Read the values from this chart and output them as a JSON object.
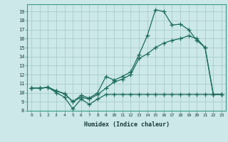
{
  "bg_color": "#cce8e8",
  "grid_color": "#aacccc",
  "line_color": "#1a6b5a",
  "line_width": 0.9,
  "marker": "+",
  "marker_size": 4,
  "marker_edge_width": 0.9,
  "xlabel": "Humidex (Indice chaleur)",
  "xlim": [
    -0.5,
    23.5
  ],
  "ylim": [
    8,
    19.8
  ],
  "xticks": [
    0,
    1,
    2,
    3,
    4,
    5,
    6,
    7,
    8,
    9,
    10,
    11,
    12,
    13,
    14,
    15,
    16,
    17,
    18,
    19,
    20,
    21,
    22,
    23
  ],
  "yticks": [
    8,
    9,
    10,
    11,
    12,
    13,
    14,
    15,
    16,
    17,
    18,
    19
  ],
  "line1_x": [
    0,
    1,
    2,
    3,
    4,
    5,
    6,
    7,
    8,
    9,
    10,
    11,
    12,
    13,
    14,
    15,
    16,
    17,
    18,
    19,
    20,
    21,
    22,
    23
  ],
  "line1_y": [
    10.5,
    10.5,
    10.6,
    10.0,
    9.5,
    8.2,
    9.3,
    8.7,
    9.3,
    9.8,
    9.8,
    9.8,
    9.8,
    9.8,
    9.8,
    9.8,
    9.8,
    9.8,
    9.8,
    9.8,
    9.8,
    9.8,
    9.8,
    9.8
  ],
  "line2_x": [
    0,
    1,
    2,
    3,
    4,
    5,
    6,
    7,
    8,
    9,
    10,
    11,
    12,
    13,
    14,
    15,
    16,
    17,
    18,
    19,
    20,
    21,
    22,
    23
  ],
  "line2_y": [
    10.5,
    10.5,
    10.6,
    10.2,
    9.9,
    9.0,
    9.5,
    9.3,
    9.8,
    10.5,
    11.2,
    11.5,
    12.0,
    13.8,
    14.3,
    15.0,
    15.5,
    15.8,
    16.0,
    16.3,
    16.0,
    15.0,
    9.8,
    9.8
  ],
  "line3_x": [
    0,
    1,
    2,
    3,
    4,
    5,
    6,
    7,
    8,
    9,
    10,
    11,
    12,
    13,
    14,
    15,
    16,
    17,
    18,
    19,
    20,
    21,
    22,
    23
  ],
  "line3_y": [
    10.5,
    10.5,
    10.6,
    10.2,
    9.9,
    9.0,
    9.7,
    9.4,
    10.0,
    11.8,
    11.4,
    11.8,
    12.3,
    14.2,
    16.3,
    19.2,
    19.0,
    17.5,
    17.6,
    17.0,
    15.8,
    15.0,
    9.8,
    9.8
  ]
}
